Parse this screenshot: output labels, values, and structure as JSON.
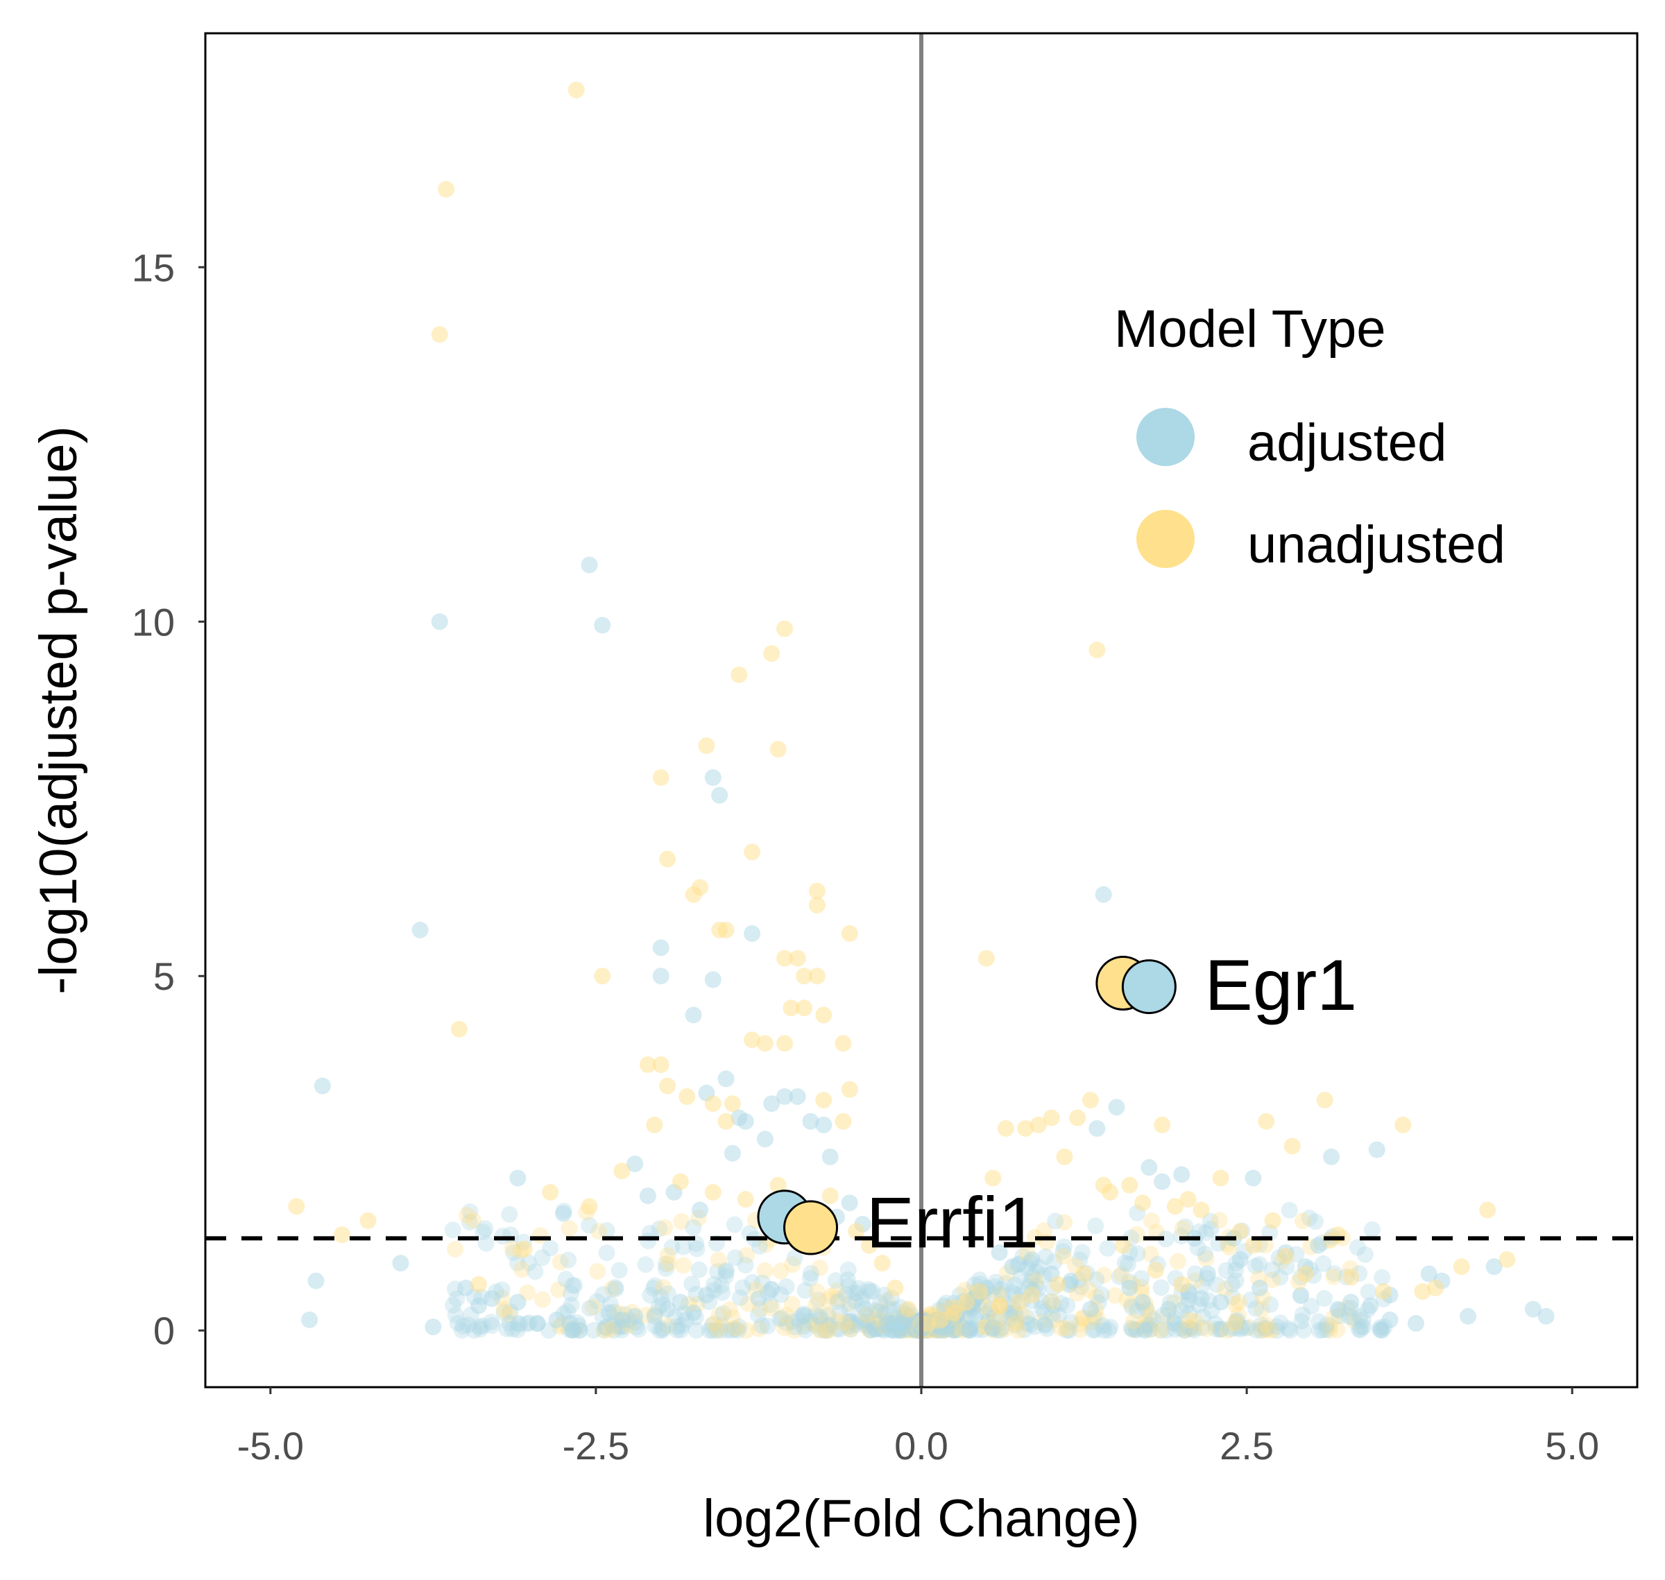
{
  "chart_data": {
    "type": "scatter",
    "xlabel": "log2(Fold Change)",
    "ylabel": "-log10(adjusted p-value)",
    "xlim": [
      -5.5,
      5.5
    ],
    "ylim": [
      -0.8,
      18.3
    ],
    "x_ticks": [
      "-5.0",
      "-2.5",
      "0.0",
      "2.5",
      "5.0"
    ],
    "y_ticks": [
      "0",
      "5",
      "10",
      "15"
    ],
    "x_tick_values": [
      -5.0,
      -2.5,
      0.0,
      2.5,
      5.0
    ],
    "y_tick_values": [
      0,
      5,
      10,
      15
    ],
    "vline_x": 0.0,
    "significance_threshold_y": 1.3,
    "grid": false,
    "legend": {
      "title": "Model Type",
      "placement": "top-right",
      "entries": [
        {
          "label": "adjusted",
          "color": "#add8e6"
        },
        {
          "label": "unadjusted",
          "color": "#ffe08c"
        }
      ]
    },
    "series": [
      {
        "name": "adjusted",
        "color": "#add8e6",
        "x": [
          -2.55,
          -3.7,
          -2.45,
          -1.6,
          -1.55,
          -3.85,
          -1.3,
          -2.0,
          -2.0,
          -1.6,
          -1.75,
          -4.6,
          -1.5,
          -1.65,
          -1.4,
          -1.15,
          -1.05,
          -0.95,
          -0.85,
          -1.2,
          -1.35,
          -0.75,
          -0.7,
          -2.2,
          -2.1,
          -3.1,
          -2.75,
          -1.7,
          -1.45,
          -1.9,
          -4.65,
          -4.7,
          -3.75,
          -4.0,
          -3.5,
          -3.4,
          -3.3,
          -3.1,
          -2.95,
          -2.8,
          -2.7,
          -2.4,
          -2.3,
          -2.2,
          -2.05,
          -1.95,
          -1.85,
          -1.75,
          -1.65,
          -1.25,
          -0.65,
          -0.55,
          -0.45,
          1.4,
          1.5,
          1.35,
          1.75,
          1.85,
          2.0,
          2.1,
          3.5,
          3.15,
          2.55,
          2.4,
          2.8,
          3.05,
          3.3,
          3.45,
          3.6,
          3.8,
          4.0,
          4.2,
          4.4,
          4.7,
          4.8,
          3.9,
          3.6,
          3.2,
          2.95,
          2.6,
          2.45,
          2.3,
          2.15,
          2.2,
          2.05,
          1.9,
          1.7,
          1.6,
          1.3,
          1.15,
          1.0,
          0.85,
          0.7,
          0.6,
          0.5,
          0.4
        ],
        "y": [
          10.8,
          10.0,
          9.95,
          7.8,
          7.55,
          5.65,
          5.6,
          5.4,
          5.0,
          4.95,
          4.45,
          3.45,
          3.55,
          3.35,
          3.0,
          3.2,
          3.3,
          3.3,
          2.95,
          2.7,
          2.95,
          2.9,
          2.45,
          2.35,
          1.9,
          2.15,
          1.65,
          1.7,
          2.5,
          1.95,
          0.7,
          0.15,
          0.05,
          0.95,
          0.6,
          0.35,
          0.45,
          0.4,
          0.1,
          0.15,
          0.1,
          0.25,
          0.15,
          0.2,
          0.2,
          0.3,
          0.4,
          0.25,
          0.5,
          0.45,
          1.6,
          1.8,
          1.5,
          6.15,
          3.15,
          2.85,
          2.3,
          2.1,
          2.2,
          1.3,
          2.55,
          2.45,
          2.15,
          1.3,
          1.1,
          1.2,
          0.4,
          0.35,
          0.15,
          0.1,
          0.7,
          0.2,
          0.9,
          0.3,
          0.2,
          0.8,
          0.5,
          0.3,
          0.9,
          0.6,
          1.0,
          0.4,
          0.45,
          0.8,
          0.55,
          0.3,
          0.4,
          0.6,
          0.3,
          0.7,
          0.8,
          1.0,
          0.9,
          1.1,
          0.6,
          0.45
        ]
      },
      {
        "name": "unadjusted",
        "color": "#ffe08c",
        "x": [
          -2.65,
          -3.65,
          -3.7,
          -3.55,
          -1.05,
          -1.15,
          -1.4,
          -1.65,
          -1.1,
          -2.0,
          -1.95,
          -1.3,
          -0.8,
          -0.8,
          -1.7,
          -1.75,
          -1.55,
          -1.5,
          -0.55,
          -0.95,
          -1.05,
          -0.9,
          -0.8,
          -2.45,
          -0.9,
          -0.75,
          -1.0,
          -1.2,
          -1.3,
          -1.05,
          -0.6,
          -0.55,
          -2.1,
          -2.0,
          -1.95,
          -1.8,
          -1.6,
          -1.45,
          -0.75,
          -0.6,
          -2.05,
          -1.5,
          -2.3,
          -2.55,
          -2.85,
          -3.4,
          -4.25,
          -4.45,
          -4.8,
          -3.05,
          -1.85,
          -1.6,
          -1.35,
          -1.1,
          -0.95,
          -0.85,
          -0.7,
          -0.5,
          -0.4,
          -0.3,
          -0.2,
          -0.1,
          1.35,
          0.5,
          1.3,
          1.2,
          1.0,
          0.9,
          0.8,
          0.65,
          0.55,
          1.1,
          1.4,
          1.45,
          1.6,
          1.7,
          1.85,
          1.95,
          2.05,
          2.15,
          2.3,
          2.45,
          2.55,
          2.7,
          2.8,
          2.95,
          3.1,
          3.2,
          3.7,
          3.85,
          3.95,
          4.15,
          4.35,
          4.5,
          2.65,
          2.85,
          3.3,
          3.55,
          2.0,
          1.8,
          1.55,
          1.25,
          1.05,
          0.85,
          0.75,
          0.6,
          0.45,
          0.35,
          0.25,
          0.15,
          0.05
        ],
        "y": [
          17.5,
          16.1,
          14.05,
          4.25,
          9.9,
          9.55,
          9.25,
          8.25,
          8.2,
          7.8,
          6.65,
          6.75,
          6.2,
          6.0,
          6.25,
          6.15,
          5.65,
          5.65,
          5.6,
          5.25,
          5.25,
          5.0,
          5.0,
          5.0,
          4.55,
          4.45,
          4.55,
          4.05,
          4.1,
          4.05,
          4.05,
          3.4,
          3.75,
          3.75,
          3.45,
          3.3,
          3.2,
          3.2,
          3.25,
          2.95,
          2.9,
          2.95,
          2.25,
          1.75,
          1.95,
          0.65,
          1.55,
          1.35,
          1.75,
          1.15,
          2.1,
          1.95,
          1.85,
          2.05,
          1.8,
          1.6,
          1.9,
          1.4,
          1.2,
          0.95,
          0.6,
          0.3,
          9.6,
          5.25,
          3.25,
          3.0,
          3.0,
          2.9,
          2.85,
          2.85,
          2.15,
          2.45,
          2.05,
          1.95,
          2.05,
          1.8,
          2.9,
          1.75,
          1.85,
          1.7,
          2.15,
          1.4,
          1.2,
          1.55,
          1.05,
          0.8,
          3.25,
          1.35,
          2.9,
          0.55,
          0.6,
          0.9,
          1.7,
          1.0,
          2.95,
          2.6,
          0.75,
          0.55,
          0.65,
          0.85,
          1.2,
          0.8,
          0.65,
          0.5,
          0.4,
          0.35,
          0.55,
          0.4,
          0.25,
          0.15,
          0.1
        ]
      }
    ],
    "highlighted_genes": [
      {
        "label": "Egr1",
        "x_adjusted": 1.75,
        "y_adjusted": 4.85,
        "x_unadjusted": 1.55,
        "y_unadjusted": 4.9
      },
      {
        "label": "Errfi1",
        "x_adjusted": -1.05,
        "y_adjusted": 1.6,
        "x_unadjusted": -0.85,
        "y_unadjusted": 1.45
      }
    ]
  }
}
